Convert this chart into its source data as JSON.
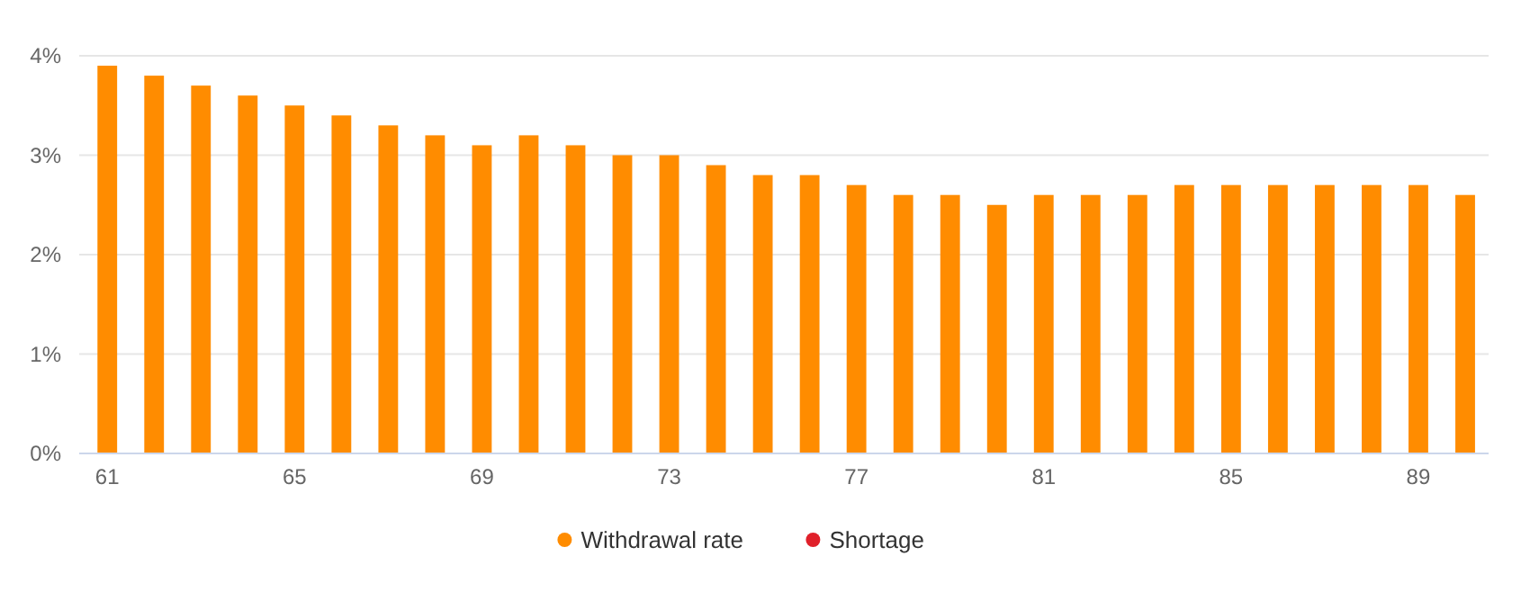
{
  "chart_data": {
    "type": "bar",
    "x": [
      61,
      62,
      63,
      64,
      65,
      66,
      67,
      68,
      69,
      70,
      71,
      72,
      73,
      74,
      75,
      76,
      77,
      78,
      79,
      80,
      81,
      82,
      83,
      84,
      85,
      86,
      87,
      88,
      89,
      90
    ],
    "series": [
      {
        "name": "Withdrawal rate",
        "color": "#ff8c00",
        "values": [
          3.9,
          3.8,
          3.7,
          3.6,
          3.5,
          3.4,
          3.3,
          3.2,
          3.1,
          3.2,
          3.1,
          3.0,
          3.0,
          2.9,
          2.8,
          2.8,
          2.7,
          2.6,
          2.6,
          2.5,
          2.6,
          2.6,
          2.6,
          2.7,
          2.7,
          2.7,
          2.7,
          2.7,
          2.7,
          2.6
        ]
      },
      {
        "name": "Shortage",
        "color": "#e0202a",
        "values": [
          null,
          null,
          null,
          null,
          null,
          null,
          null,
          null,
          null,
          null,
          null,
          null,
          null,
          null,
          null,
          null,
          null,
          null,
          null,
          null,
          null,
          null,
          null,
          null,
          null,
          null,
          null,
          null,
          null,
          null
        ]
      }
    ],
    "xlim": [
      60.4,
      90.5
    ],
    "xticks": [
      61,
      65,
      69,
      73,
      77,
      81,
      85,
      89
    ],
    "ylim": [
      0,
      4
    ],
    "yticks": [
      {
        "value": 0,
        "label": "0%"
      },
      {
        "value": 1,
        "label": "1%"
      },
      {
        "value": 2,
        "label": "2%"
      },
      {
        "value": 3,
        "label": "3%"
      },
      {
        "value": 4,
        "label": "4%"
      }
    ],
    "grid": "y",
    "legend": "bottom"
  }
}
